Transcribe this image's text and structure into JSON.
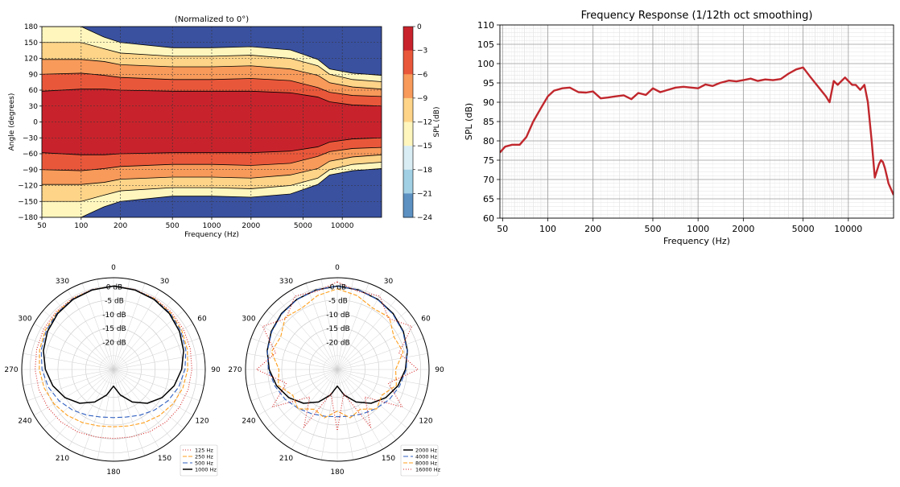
{
  "chart_data": [
    {
      "type": "heatmap",
      "title": "(Normalized to 0°)",
      "xlabel": "Frequency (Hz)",
      "ylabel": "Angle (degrees)",
      "xscale": "log",
      "xlim": [
        50,
        20000
      ],
      "ylim": [
        -180,
        180
      ],
      "xticks": [
        "50",
        "100",
        "200",
        "500",
        "1000",
        "2000",
        "5000",
        "10000"
      ],
      "yticks": [
        "180",
        "150",
        "120",
        "90",
        "60",
        "30",
        "0",
        "−30",
        "−60",
        "−90",
        "−120",
        "−150",
        "−180"
      ],
      "colorbar": {
        "label": "SPL (dB)",
        "ticks": [
          "0",
          "−3",
          "−6",
          "−9",
          "−12",
          "−15",
          "−18",
          "−21",
          "−24"
        ],
        "colors": [
          "#c8232c",
          "#e9573a",
          "#f79a5a",
          "#fdd488",
          "#fff6bd",
          "#d9eef4",
          "#a1cfe3",
          "#5c91c2",
          "#3a51a0"
        ]
      },
      "contours": [
        {
          "level": -3,
          "angle": [
            [
              50,
              58
            ],
            [
              100,
              62
            ],
            [
              150,
              62
            ],
            [
              200,
              60
            ],
            [
              500,
              58
            ],
            [
              1000,
              58
            ],
            [
              2000,
              58
            ],
            [
              4000,
              55
            ],
            [
              6500,
              47
            ],
            [
              8000,
              38
            ],
            [
              12000,
              32
            ],
            [
              20000,
              30
            ]
          ]
        },
        {
          "level": -6,
          "angle": [
            [
              50,
              90
            ],
            [
              100,
              92
            ],
            [
              150,
              88
            ],
            [
              200,
              84
            ],
            [
              500,
              80
            ],
            [
              1000,
              80
            ],
            [
              2000,
              82
            ],
            [
              4000,
              78
            ],
            [
              6500,
              65
            ],
            [
              8000,
              56
            ],
            [
              12000,
              50
            ],
            [
              20000,
              48
            ]
          ]
        },
        {
          "level": -9,
          "angle": [
            [
              50,
              118
            ],
            [
              100,
              118
            ],
            [
              150,
              114
            ],
            [
              200,
              108
            ],
            [
              500,
              104
            ],
            [
              1000,
              104
            ],
            [
              2000,
              106
            ],
            [
              4000,
              100
            ],
            [
              6500,
              88
            ],
            [
              8000,
              74
            ],
            [
              12000,
              66
            ],
            [
              20000,
              62
            ]
          ]
        },
        {
          "level": -12,
          "angle": [
            [
              50,
              150
            ],
            [
              100,
              150
            ],
            [
              150,
              138
            ],
            [
              200,
              130
            ],
            [
              500,
              124
            ],
            [
              1000,
              124
            ],
            [
              2000,
              126
            ],
            [
              4000,
              120
            ],
            [
              6500,
              106
            ],
            [
              8000,
              90
            ],
            [
              12000,
              80
            ],
            [
              20000,
              76
            ]
          ]
        },
        {
          "level": -15,
          "angle": [
            [
              50,
              180
            ],
            [
              100,
              180
            ],
            [
              150,
              160
            ],
            [
              200,
              150
            ],
            [
              500,
              140
            ],
            [
              1000,
              140
            ],
            [
              2000,
              142
            ],
            [
              4000,
              136
            ],
            [
              6500,
              118
            ],
            [
              8000,
              100
            ],
            [
              12000,
              92
            ],
            [
              20000,
              88
            ]
          ]
        }
      ]
    },
    {
      "type": "line",
      "title": "Frequency Response (1/12th oct smoothing)",
      "xlabel": "Frequency (Hz)",
      "ylabel": "SPL (dB)",
      "xscale": "log",
      "xlim": [
        48,
        20000
      ],
      "ylim": [
        60,
        110
      ],
      "xticks": [
        "50",
        "100",
        "200",
        "500",
        "1000",
        "2000",
        "5000",
        "10000"
      ],
      "yticks": [
        "60",
        "65",
        "70",
        "75",
        "80",
        "85",
        "90",
        "95",
        "100",
        "105",
        "110"
      ],
      "grid": true,
      "line_color": "#c0272d",
      "series": [
        {
          "x": [
            48,
            52,
            58,
            65,
            72,
            80,
            90,
            100,
            110,
            125,
            140,
            160,
            180,
            200,
            225,
            250,
            280,
            320,
            360,
            400,
            450,
            500,
            560,
            630,
            710,
            800,
            900,
            1000,
            1120,
            1250,
            1400,
            1600,
            1800,
            2000,
            2240,
            2500,
            2800,
            3150,
            3550,
            4000,
            4500,
            5000,
            5600,
            6300,
            7100,
            7500,
            8000,
            8500,
            9000,
            9500,
            10000,
            10600,
            11200,
            12000,
            12800,
            13500,
            14300,
            15000,
            16000,
            16500,
            17000,
            17500,
            18000,
            18500,
            19000,
            20000
          ],
          "y": [
            77,
            78.5,
            79,
            79,
            81,
            85,
            88.5,
            91.5,
            93,
            93.6,
            93.8,
            92.6,
            92.5,
            92.8,
            91,
            91.2,
            91.5,
            91.8,
            90.8,
            92.4,
            91.9,
            93.6,
            92.6,
            93.2,
            93.8,
            94,
            93.8,
            93.6,
            94.6,
            94.2,
            95,
            95.6,
            95.4,
            95.7,
            96.1,
            95.5,
            95.9,
            95.7,
            96,
            97.4,
            98.5,
            99,
            96.5,
            94,
            91.5,
            90,
            95.5,
            94.5,
            95.5,
            96.4,
            95.5,
            94.5,
            94.5,
            93.2,
            94.5,
            90,
            80,
            70.5,
            74,
            75,
            74.5,
            73,
            71,
            69,
            68,
            66
          ]
        }
      ]
    },
    {
      "type": "polar",
      "direction": "clockwise",
      "zero_location": "top",
      "angle_ticks": [
        "0",
        "30",
        "60",
        "90",
        "120",
        "150",
        "180",
        "210",
        "240",
        "270",
        "300",
        "330"
      ],
      "radial_ticks": [
        "0 dB",
        "-5 dB",
        "-10 dB",
        "-15 dB",
        "-20 dB"
      ],
      "rlim": [
        -30,
        0
      ],
      "legend": "bottom-right",
      "series": [
        {
          "name": "125 Hz",
          "color": "#d62728",
          "dash": "1,2",
          "angle": [
            0,
            15,
            30,
            45,
            60,
            75,
            90,
            105,
            120,
            135,
            150,
            165,
            180,
            195,
            210,
            225,
            240,
            255,
            270,
            285,
            300,
            315,
            330,
            345
          ],
          "r": [
            0,
            -0.2,
            -0.4,
            -0.7,
            -1.0,
            -1.4,
            -1.8,
            -2.2,
            -2.7,
            -3.3,
            -4.1,
            -4.9,
            -5.2,
            -4.9,
            -4.1,
            -3.3,
            -2.7,
            -2.2,
            -1.8,
            -1.4,
            -1.0,
            -0.7,
            -0.4,
            -0.2
          ]
        },
        {
          "name": "250 Hz",
          "color": "#ff9f1c",
          "dash": "5,2",
          "angle": [
            0,
            15,
            30,
            45,
            60,
            75,
            90,
            105,
            120,
            135,
            150,
            165,
            180,
            195,
            210,
            225,
            240,
            255,
            270,
            285,
            300,
            315,
            330,
            345
          ],
          "r": [
            0,
            -0.3,
            -0.6,
            -1.1,
            -1.7,
            -2.5,
            -3.3,
            -4.2,
            -5.3,
            -6.6,
            -7.9,
            -9.0,
            -9.4,
            -9.0,
            -7.9,
            -6.6,
            -5.3,
            -4.2,
            -3.3,
            -2.5,
            -1.7,
            -1.1,
            -0.6,
            -0.3
          ]
        },
        {
          "name": "500 Hz",
          "color": "#3060c0",
          "dash": "6,3",
          "angle": [
            0,
            15,
            30,
            45,
            60,
            75,
            90,
            105,
            120,
            135,
            150,
            165,
            180,
            195,
            210,
            225,
            240,
            255,
            270,
            285,
            300,
            315,
            330,
            345
          ],
          "r": [
            0,
            -0.3,
            -0.7,
            -1.3,
            -2.1,
            -3.1,
            -4.3,
            -5.7,
            -7.4,
            -9.3,
            -11.0,
            -12.3,
            -12.7,
            -12.3,
            -11.0,
            -9.3,
            -7.4,
            -5.7,
            -4.3,
            -3.1,
            -2.1,
            -1.3,
            -0.7,
            -0.3
          ]
        },
        {
          "name": "1000 Hz",
          "color": "#000000",
          "dash": "",
          "angle": [
            0,
            15,
            30,
            45,
            60,
            75,
            90,
            105,
            120,
            135,
            150,
            165,
            180,
            195,
            210,
            225,
            240,
            255,
            270,
            285,
            300,
            315,
            330,
            345
          ],
          "r": [
            0,
            -0.4,
            -0.9,
            -1.6,
            -2.6,
            -3.9,
            -5.5,
            -7.4,
            -9.8,
            -12.8,
            -16.5,
            -20.5,
            -24,
            -20.5,
            -16.5,
            -12.8,
            -9.8,
            -7.4,
            -5.5,
            -3.9,
            -2.6,
            -1.6,
            -0.9,
            -0.4
          ]
        }
      ]
    },
    {
      "type": "polar",
      "direction": "clockwise",
      "zero_location": "top",
      "angle_ticks": [
        "0",
        "30",
        "60",
        "90",
        "120",
        "150",
        "180",
        "210",
        "240",
        "270",
        "300",
        "330"
      ],
      "radial_ticks": [
        "0 dB",
        "-5 dB",
        "-10 dB",
        "-15 dB",
        "-20 dB"
      ],
      "rlim": [
        -30,
        0
      ],
      "legend": "bottom-right",
      "series": [
        {
          "name": "2000 Hz",
          "color": "#000000",
          "dash": "",
          "angle": [
            0,
            15,
            30,
            45,
            60,
            75,
            90,
            105,
            120,
            135,
            150,
            165,
            180,
            195,
            210,
            225,
            240,
            255,
            270,
            285,
            300,
            315,
            330,
            345
          ],
          "r": [
            0,
            -0.4,
            -0.9,
            -1.6,
            -2.6,
            -3.9,
            -5.5,
            -7.4,
            -9.8,
            -12.8,
            -16.5,
            -20.5,
            -24,
            -20.5,
            -16.5,
            -12.8,
            -9.8,
            -7.4,
            -5.5,
            -3.9,
            -2.6,
            -1.6,
            -0.9,
            -0.4
          ]
        },
        {
          "name": "4000 Hz",
          "color": "#3060c0",
          "dash": "6,3",
          "angle": [
            0,
            15,
            30,
            45,
            60,
            75,
            90,
            105,
            120,
            135,
            150,
            165,
            180,
            195,
            210,
            225,
            240,
            255,
            270,
            285,
            300,
            315,
            330,
            345
          ],
          "r": [
            0,
            -0.4,
            -1.0,
            -1.8,
            -2.8,
            -4.0,
            -5.2,
            -6.8,
            -8.4,
            -10.2,
            -11.6,
            -12.6,
            -13.0,
            -12.6,
            -11.6,
            -10.2,
            -8.4,
            -6.8,
            -5.2,
            -4.0,
            -2.8,
            -1.8,
            -1.0,
            -0.4
          ]
        },
        {
          "name": "8000 Hz",
          "color": "#ff9f1c",
          "dash": "5,2",
          "angle": [
            0,
            15,
            30,
            45,
            60,
            75,
            90,
            105,
            120,
            135,
            150,
            165,
            180,
            195,
            210,
            225,
            240,
            255,
            270,
            285,
            300,
            315,
            330,
            345
          ],
          "r": [
            -1,
            -2.5,
            -4.5,
            -3.5,
            -6.5,
            -5.5,
            -9.0,
            -8.0,
            -11.5,
            -10.0,
            -13.5,
            -12.0,
            -15.0,
            -12.0,
            -13.5,
            -10.0,
            -11.5,
            -8.0,
            -9.0,
            -5.5,
            -6.5,
            -3.5,
            -4.5,
            -2.5
          ]
        },
        {
          "name": "16000 Hz",
          "color": "#d62728",
          "dash": "1,2",
          "angle": [
            0,
            15,
            30,
            45,
            60,
            75,
            90,
            105,
            120,
            135,
            150,
            165,
            180,
            195,
            210,
            225,
            240,
            255,
            270,
            285,
            300,
            315,
            330,
            345
          ],
          "r": [
            1.5,
            -1,
            0.5,
            -4,
            1,
            -7,
            -1,
            -11,
            -3,
            -16,
            -6,
            -21,
            -8,
            -21,
            -6,
            -16,
            -3,
            -11,
            -1,
            -7,
            1,
            -4,
            0.5,
            -1
          ]
        }
      ]
    }
  ]
}
